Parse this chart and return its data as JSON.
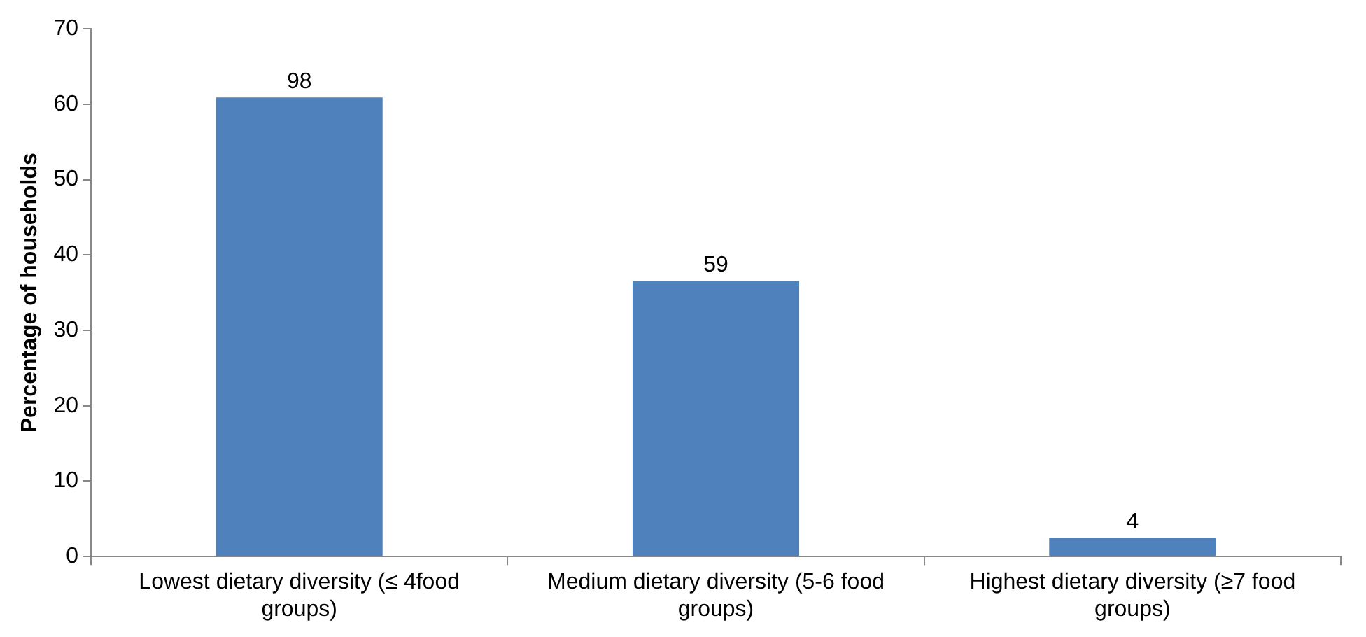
{
  "chart_data": {
    "type": "bar",
    "ylabel": "Percentage of households",
    "categories": [
      "Lowest dietary diversity (≤ 4food groups)",
      "Medium dietary diversity (5-6 food groups)",
      "Highest dietary diversity (≥7 food groups)"
    ],
    "values": [
      60.9,
      36.6,
      2.5
    ],
    "annotations": [
      {
        "text": "98",
        "x": "Lowest dietary diversity (≤ 4food groups)",
        "y": 60.9
      },
      {
        "text": "59",
        "x": "Medium dietary diversity (5-6 food groups)",
        "y": 36.6
      },
      {
        "text": "4",
        "x": "Highest dietary diversity (≥7 food groups)",
        "y": 2.5
      }
    ],
    "color": "#4f81bd",
    "ylim": [
      0,
      70
    ],
    "yticks": [
      0,
      10,
      20,
      30,
      40,
      50,
      60,
      70
    ],
    "grid": false,
    "legend": false
  }
}
